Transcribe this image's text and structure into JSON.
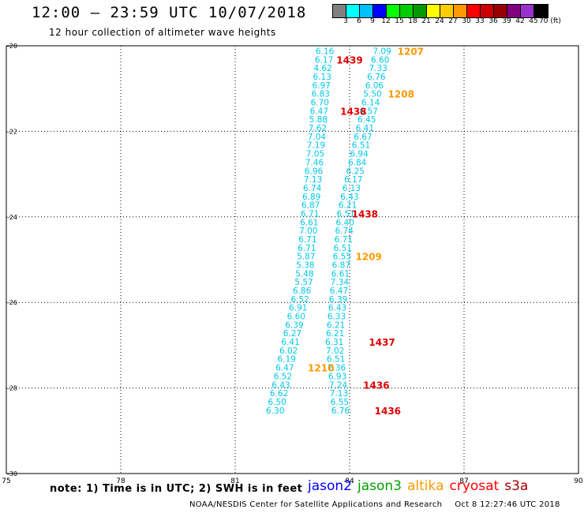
{
  "header": {
    "title": "12:00 — 23:59 UTC 10/07/2018",
    "subtitle": "12 hour collection of altimeter wave heights"
  },
  "colorbar": {
    "colors": [
      "#808080",
      "#00ffff",
      "#00bfff",
      "#0000ff",
      "#00ff00",
      "#00cd00",
      "#009900",
      "#ffff00",
      "#ffcc00",
      "#ff9900",
      "#ff0000",
      "#cc0000",
      "#990000",
      "#800080",
      "#9932cc",
      "#000000"
    ],
    "labels": [
      "3",
      "6",
      "9",
      "12",
      "15",
      "18",
      "21",
      "24",
      "27",
      "30",
      "33",
      "36",
      "39",
      "42",
      "45",
      "70 (ft)"
    ]
  },
  "chart_data": {
    "type": "scatter",
    "title": "12:00 — 23:59 UTC 10/07/2018",
    "subtitle": "12 hour collection of altimeter wave heights",
    "xlabel": "",
    "ylabel": "",
    "xlim": [
      75,
      90
    ],
    "ylim": [
      -30,
      -20
    ],
    "x_ticks": [
      "75",
      "78",
      "81",
      "84",
      "87",
      "90"
    ],
    "y_ticks": [
      "-20",
      "-22",
      "-24",
      "-26",
      "-28",
      "-30"
    ],
    "grid": true,
    "series": [
      {
        "name": "jason2",
        "color": "#00c8e6",
        "points": [
          {
            "x": 83.35,
            "y": -20.12,
            "v": "6.16"
          },
          {
            "x": 83.33,
            "y": -20.32,
            "v": "6.17"
          },
          {
            "x": 83.3,
            "y": -20.52,
            "v": "4.62"
          },
          {
            "x": 83.28,
            "y": -20.72,
            "v": "6.13"
          },
          {
            "x": 83.26,
            "y": -20.92,
            "v": "6.97"
          },
          {
            "x": 83.24,
            "y": -21.12,
            "v": "6.83"
          },
          {
            "x": 83.22,
            "y": -21.32,
            "v": "6.70"
          },
          {
            "x": 83.2,
            "y": -21.52,
            "v": "6.47"
          },
          {
            "x": 83.18,
            "y": -21.72,
            "v": "5.88"
          },
          {
            "x": 83.16,
            "y": -21.92,
            "v": "7.62"
          },
          {
            "x": 83.14,
            "y": -22.12,
            "v": "7.04"
          },
          {
            "x": 83.12,
            "y": -22.32,
            "v": "7.19"
          },
          {
            "x": 83.1,
            "y": -22.52,
            "v": "7.05"
          },
          {
            "x": 83.08,
            "y": -22.72,
            "v": "7.46"
          },
          {
            "x": 83.06,
            "y": -22.92,
            "v": "6.96"
          },
          {
            "x": 83.04,
            "y": -23.12,
            "v": "7.13"
          },
          {
            "x": 83.02,
            "y": -23.32,
            "v": "6.74"
          },
          {
            "x": 83.0,
            "y": -23.52,
            "v": "6.89"
          },
          {
            "x": 82.98,
            "y": -23.72,
            "v": "6.87"
          },
          {
            "x": 82.96,
            "y": -23.92,
            "v": "6.71"
          },
          {
            "x": 82.94,
            "y": -24.12,
            "v": "6.61"
          },
          {
            "x": 82.92,
            "y": -24.32,
            "v": "7.00"
          },
          {
            "x": 82.9,
            "y": -24.52,
            "v": "6.71"
          },
          {
            "x": 82.88,
            "y": -24.72,
            "v": "6.71"
          },
          {
            "x": 82.86,
            "y": -24.92,
            "v": "5.87"
          },
          {
            "x": 82.84,
            "y": -25.12,
            "v": "5.38"
          },
          {
            "x": 82.82,
            "y": -25.32,
            "v": "5.48"
          },
          {
            "x": 82.8,
            "y": -25.52,
            "v": "5.57"
          },
          {
            "x": 82.75,
            "y": -25.72,
            "v": "6.86"
          },
          {
            "x": 82.7,
            "y": -25.92,
            "v": "6.52"
          },
          {
            "x": 82.65,
            "y": -26.12,
            "v": "6.91"
          },
          {
            "x": 82.6,
            "y": -26.32,
            "v": "6.60"
          },
          {
            "x": 82.55,
            "y": -26.52,
            "v": "6.39"
          },
          {
            "x": 82.5,
            "y": -26.72,
            "v": "6.27"
          },
          {
            "x": 82.45,
            "y": -26.92,
            "v": "6.41"
          },
          {
            "x": 82.4,
            "y": -27.12,
            "v": "6.02"
          },
          {
            "x": 82.35,
            "y": -27.32,
            "v": "6.19"
          },
          {
            "x": 82.3,
            "y": -27.52,
            "v": "6.47"
          },
          {
            "x": 82.25,
            "y": -27.72,
            "v": "6.52"
          },
          {
            "x": 82.2,
            "y": -27.92,
            "v": "6.43"
          },
          {
            "x": 82.15,
            "y": -28.12,
            "v": "6.62"
          },
          {
            "x": 82.1,
            "y": -28.32,
            "v": "6.50"
          },
          {
            "x": 82.05,
            "y": -28.52,
            "v": "6.30"
          }
        ]
      },
      {
        "name": "jason3",
        "color": "#00c8e6",
        "points": [
          {
            "x": 84.85,
            "y": -20.12,
            "v": "7.09"
          },
          {
            "x": 84.8,
            "y": -20.32,
            "v": "6.60"
          },
          {
            "x": 84.75,
            "y": -20.52,
            "v": "7.33"
          },
          {
            "x": 84.7,
            "y": -20.72,
            "v": "6.76"
          },
          {
            "x": 84.65,
            "y": -20.92,
            "v": "6.06"
          },
          {
            "x": 84.6,
            "y": -21.12,
            "v": "5.50"
          },
          {
            "x": 84.55,
            "y": -21.32,
            "v": "6.14"
          },
          {
            "x": 84.5,
            "y": -21.52,
            "v": "6.57"
          },
          {
            "x": 84.45,
            "y": -21.72,
            "v": "6.45"
          },
          {
            "x": 84.4,
            "y": -21.92,
            "v": "6.41"
          },
          {
            "x": 84.35,
            "y": -22.12,
            "v": "6.67"
          },
          {
            "x": 84.3,
            "y": -22.32,
            "v": "6.51"
          },
          {
            "x": 84.25,
            "y": -22.52,
            "v": "6.94"
          },
          {
            "x": 84.2,
            "y": -22.72,
            "v": "6.84"
          },
          {
            "x": 84.15,
            "y": -22.92,
            "v": "6.25"
          },
          {
            "x": 84.1,
            "y": -23.12,
            "v": "6.17"
          },
          {
            "x": 84.05,
            "y": -23.32,
            "v": "6.13"
          },
          {
            "x": 84.0,
            "y": -23.52,
            "v": "6.43"
          },
          {
            "x": 83.95,
            "y": -23.72,
            "v": "6.21"
          },
          {
            "x": 83.9,
            "y": -23.92,
            "v": "6.51"
          },
          {
            "x": 83.88,
            "y": -24.12,
            "v": "6.40"
          },
          {
            "x": 83.86,
            "y": -24.32,
            "v": "6.74"
          },
          {
            "x": 83.84,
            "y": -24.52,
            "v": "6.71"
          },
          {
            "x": 83.82,
            "y": -24.72,
            "v": "6.51"
          },
          {
            "x": 83.8,
            "y": -24.92,
            "v": "6.55"
          },
          {
            "x": 83.78,
            "y": -25.12,
            "v": "6.87"
          },
          {
            "x": 83.76,
            "y": -25.32,
            "v": "6.61"
          },
          {
            "x": 83.74,
            "y": -25.52,
            "v": "7.34"
          },
          {
            "x": 83.72,
            "y": -25.72,
            "v": "6.47"
          },
          {
            "x": 83.7,
            "y": -25.92,
            "v": "6.39"
          },
          {
            "x": 83.68,
            "y": -26.12,
            "v": "6.43"
          },
          {
            "x": 83.66,
            "y": -26.32,
            "v": "6.33"
          },
          {
            "x": 83.64,
            "y": -26.52,
            "v": "6.21"
          },
          {
            "x": 83.62,
            "y": -26.72,
            "v": "6.21"
          },
          {
            "x": 83.6,
            "y": -26.92,
            "v": "6.31"
          },
          {
            "x": 83.62,
            "y": -27.12,
            "v": "7.02"
          },
          {
            "x": 83.64,
            "y": -27.32,
            "v": "6.51"
          },
          {
            "x": 83.66,
            "y": -27.52,
            "v": "7.36"
          },
          {
            "x": 83.68,
            "y": -27.72,
            "v": "6.93"
          },
          {
            "x": 83.7,
            "y": -27.92,
            "v": "7.24"
          },
          {
            "x": 83.72,
            "y": -28.12,
            "v": "7.13"
          },
          {
            "x": 83.74,
            "y": -28.32,
            "v": "6.55"
          },
          {
            "x": 83.76,
            "y": -28.52,
            "v": "6.76"
          }
        ]
      }
    ],
    "time_labels": [
      {
        "text": "1207",
        "x": 85.6,
        "y": -20.12,
        "color": "#ff9900"
      },
      {
        "text": "1439",
        "x": 84.0,
        "y": -20.32,
        "color": "#e00000"
      },
      {
        "text": "1208",
        "x": 85.35,
        "y": -21.12,
        "color": "#ff9900"
      },
      {
        "text": "1438",
        "x": 84.1,
        "y": -21.52,
        "color": "#e00000"
      },
      {
        "text": "1438",
        "x": 84.4,
        "y": -23.92,
        "color": "#e00000"
      },
      {
        "text": "1209",
        "x": 84.5,
        "y": -24.92,
        "color": "#ff9900"
      },
      {
        "text": "1437",
        "x": 84.85,
        "y": -26.92,
        "color": "#e00000"
      },
      {
        "text": "1210",
        "x": 83.25,
        "y": -27.52,
        "color": "#ff9900"
      },
      {
        "text": "1436",
        "x": 84.7,
        "y": -27.92,
        "color": "#e00000"
      },
      {
        "text": "1436",
        "x": 85.0,
        "y": -28.52,
        "color": "#e00000"
      }
    ]
  },
  "note": "note: 1) Time is in UTC; 2) SWH is in feet",
  "legend": [
    {
      "name": "jason2",
      "color": "#0000ff"
    },
    {
      "name": "jason3",
      "color": "#00a000"
    },
    {
      "name": "altika",
      "color": "#ff9900"
    },
    {
      "name": "cryosat",
      "color": "#ff0000"
    },
    {
      "name": "s3a",
      "color": "#a00000"
    }
  ],
  "footer": {
    "credit": "NOAA/NESDIS Center for Satellite Applications and Research",
    "timestamp": "Oct  8 12:27:46 UTC 2018"
  }
}
